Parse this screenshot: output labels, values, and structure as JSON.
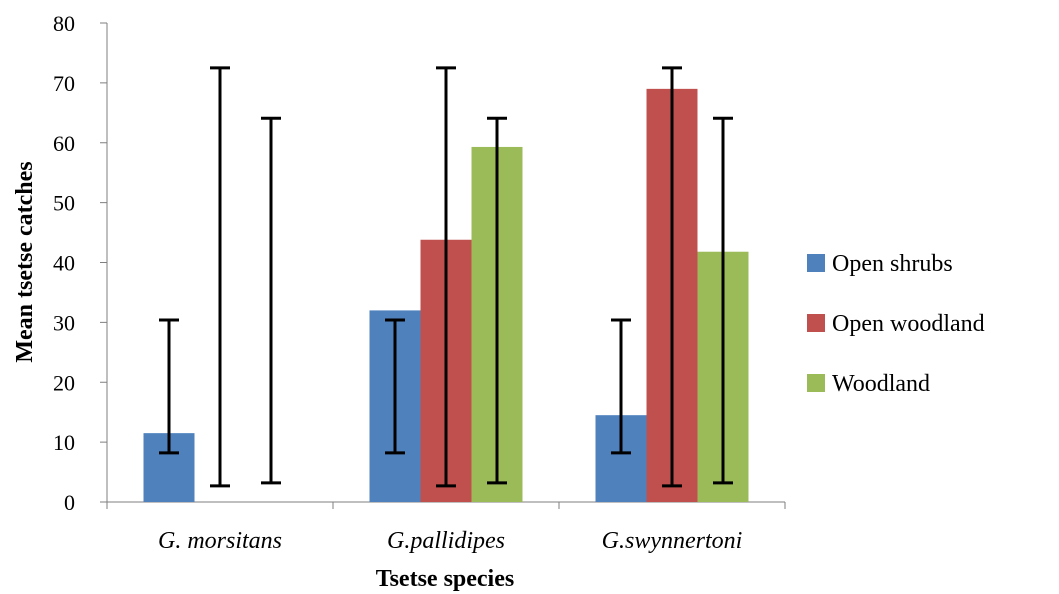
{
  "chart_data": {
    "type": "bar",
    "xlabel": "Tsetse species",
    "ylabel": "Mean tsetse catches",
    "ylim": [
      0,
      80
    ],
    "yticks": [
      0,
      10,
      20,
      30,
      40,
      50,
      60,
      70,
      80
    ],
    "categories": [
      "G. morsitans",
      "G.pallidipes",
      "G.swynnertoni"
    ],
    "series": [
      {
        "name": "Open shrubs",
        "color": "#4f81bd",
        "values": [
          11.5,
          32,
          14.5
        ],
        "error_low": [
          8.2,
          8.2,
          8.2
        ],
        "error_high": [
          30.4,
          30.4,
          30.4
        ]
      },
      {
        "name": "Open woodland",
        "color": "#c0504d",
        "values": [
          0,
          43.8,
          69
        ],
        "error_low": [
          2.7,
          2.7,
          2.7
        ],
        "error_high": [
          72.5,
          72.5,
          72.5
        ]
      },
      {
        "name": "Woodland",
        "color": "#9bbb59",
        "values": [
          0,
          59.3,
          41.8
        ],
        "error_low": [
          3.2,
          3.2,
          3.2
        ],
        "error_high": [
          64.1,
          64.1,
          64.1
        ]
      }
    ],
    "legend_position": "right",
    "grid": false
  }
}
